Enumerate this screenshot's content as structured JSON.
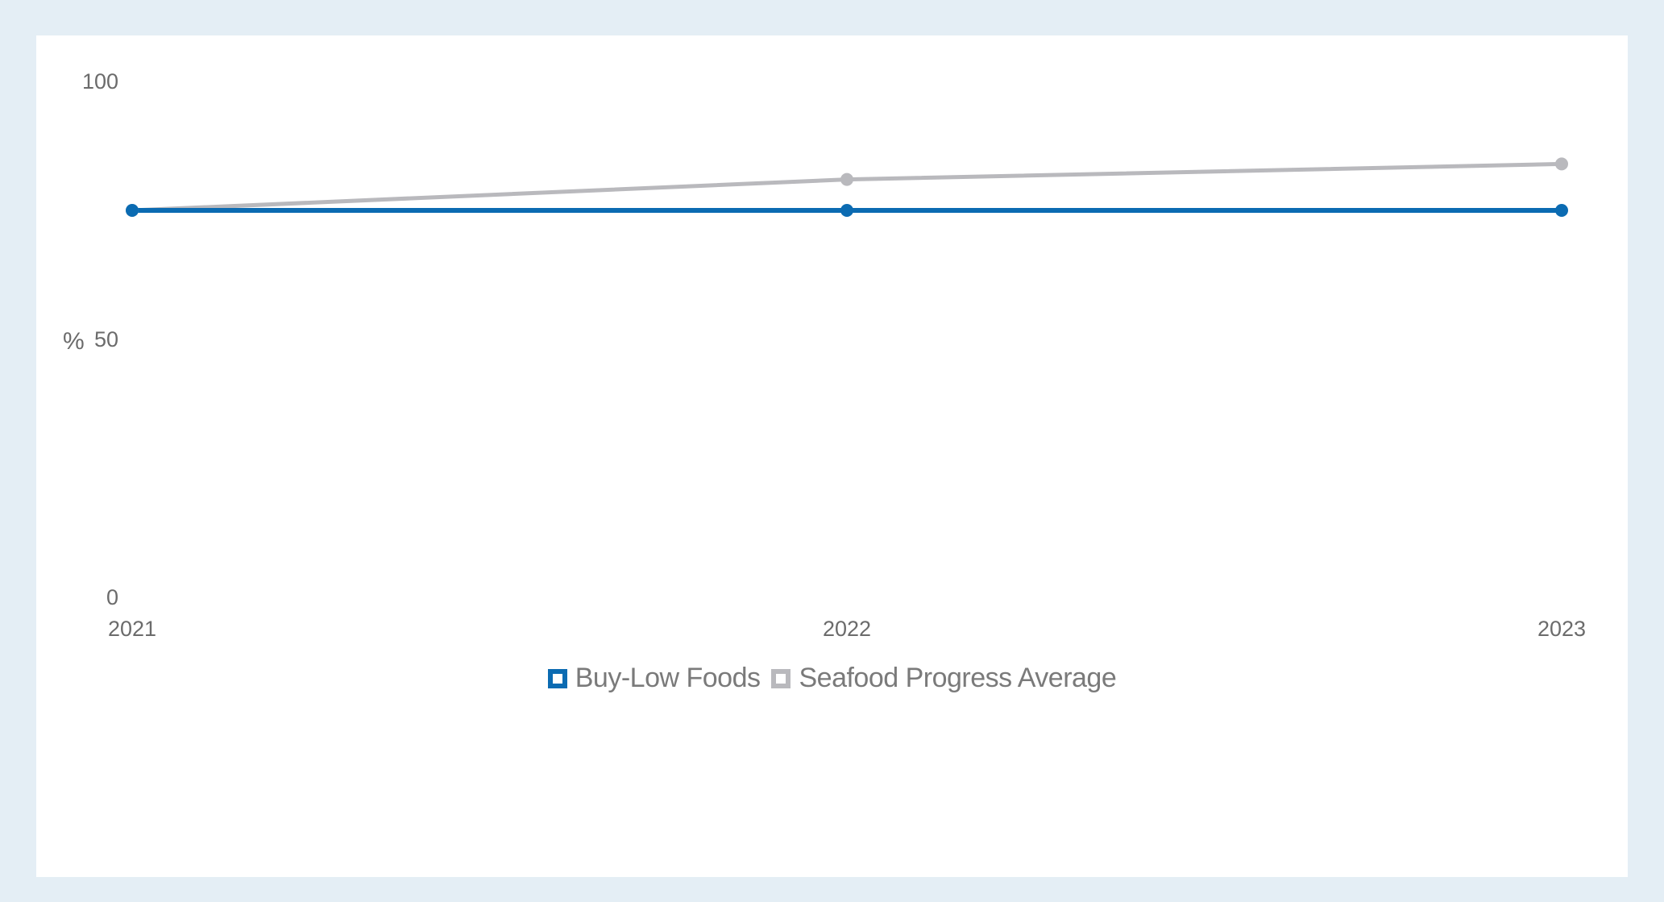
{
  "chart_data": {
    "type": "line",
    "categories": [
      "2021",
      "2022",
      "2023"
    ],
    "series": [
      {
        "name": "Buy-Low Foods",
        "values": [
          75,
          75,
          75
        ],
        "color": "#0b6bb2"
      },
      {
        "name": "Seafood Progress Average",
        "values": [
          75,
          81,
          84
        ],
        "color": "#b9b9bd"
      }
    ],
    "ylabel": "%",
    "ylim": [
      0,
      100
    ],
    "yticks": [
      "0",
      "50",
      "100"
    ],
    "grid": false,
    "legend_position": "bottom-center"
  }
}
